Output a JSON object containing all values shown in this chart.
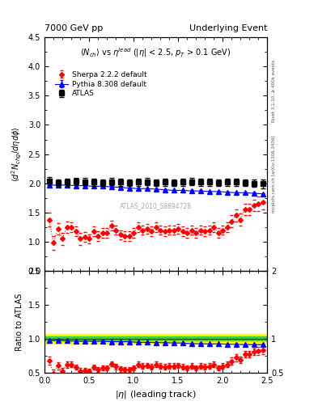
{
  "title_left": "7000 GeV pp",
  "title_right": "Underlying Event",
  "subtitle": "$\\langle N_{ch}\\rangle$ vs $\\eta^{lead}$ ($|\\eta|$ < 2.5, $p_{T}$ > 0.1 GeV)",
  "ylabel_main": "$\\langle d^2 N_{chg}/d\\eta d\\phi \\rangle$",
  "ylabel_ratio": "Ratio to ATLAS",
  "xlabel": "$|\\eta|$ (leading track)",
  "watermark": "ATLAS_2010_S8894728",
  "right_label_top": "Rivet 3.1.10, ≥ 400k events",
  "right_label_bottom": "mcplots.cern.ch [arXiv:1306.3436]",
  "ylim_main": [
    0.5,
    4.5
  ],
  "ylim_ratio": [
    0.5,
    2.0
  ],
  "xlim": [
    0.0,
    2.5
  ],
  "atlas_color": "#000000",
  "pythia_color": "#0000ff",
  "sherpa_color": "#ff0000",
  "band_yellow": "#ffff00",
  "band_green": "#44cc44",
  "atlas_data_x": [
    0.05,
    0.15,
    0.25,
    0.35,
    0.45,
    0.55,
    0.65,
    0.75,
    0.85,
    0.95,
    1.05,
    1.15,
    1.25,
    1.35,
    1.45,
    1.55,
    1.65,
    1.75,
    1.85,
    1.95,
    2.05,
    2.15,
    2.25,
    2.35,
    2.45
  ],
  "atlas_data_y": [
    2.04,
    2.01,
    2.02,
    2.04,
    2.03,
    2.02,
    2.01,
    2.03,
    2.02,
    2.01,
    2.02,
    2.03,
    2.01,
    2.02,
    2.01,
    2.02,
    2.03,
    2.02,
    2.02,
    2.01,
    2.02,
    2.02,
    2.01,
    2.0,
    1.99
  ],
  "atlas_data_yerr": [
    0.07,
    0.06,
    0.06,
    0.06,
    0.06,
    0.06,
    0.06,
    0.06,
    0.06,
    0.06,
    0.06,
    0.06,
    0.06,
    0.06,
    0.06,
    0.06,
    0.06,
    0.06,
    0.06,
    0.06,
    0.06,
    0.06,
    0.06,
    0.06,
    0.07
  ],
  "pythia_x": [
    0.05,
    0.15,
    0.25,
    0.35,
    0.45,
    0.55,
    0.65,
    0.75,
    0.85,
    0.95,
    1.05,
    1.15,
    1.25,
    1.35,
    1.45,
    1.55,
    1.65,
    1.75,
    1.85,
    1.95,
    2.05,
    2.15,
    2.25,
    2.35,
    2.45
  ],
  "pythia_y": [
    1.97,
    1.97,
    1.97,
    1.96,
    1.96,
    1.95,
    1.95,
    1.94,
    1.93,
    1.92,
    1.91,
    1.91,
    1.9,
    1.89,
    1.88,
    1.88,
    1.87,
    1.87,
    1.86,
    1.86,
    1.85,
    1.84,
    1.84,
    1.83,
    1.82
  ],
  "pythia_yerr": [
    0.01,
    0.01,
    0.01,
    0.01,
    0.01,
    0.01,
    0.01,
    0.01,
    0.01,
    0.01,
    0.01,
    0.01,
    0.01,
    0.01,
    0.01,
    0.01,
    0.01,
    0.01,
    0.01,
    0.01,
    0.01,
    0.01,
    0.01,
    0.01,
    0.01
  ],
  "sherpa_x": [
    0.05,
    0.1,
    0.15,
    0.2,
    0.25,
    0.3,
    0.35,
    0.4,
    0.45,
    0.5,
    0.55,
    0.6,
    0.65,
    0.7,
    0.75,
    0.8,
    0.85,
    0.9,
    0.95,
    1.0,
    1.05,
    1.1,
    1.15,
    1.2,
    1.25,
    1.3,
    1.35,
    1.4,
    1.45,
    1.5,
    1.55,
    1.6,
    1.65,
    1.7,
    1.75,
    1.8,
    1.85,
    1.9,
    1.95,
    2.0,
    2.05,
    2.1,
    2.15,
    2.2,
    2.25,
    2.3,
    2.35,
    2.4,
    2.45
  ],
  "sherpa_y": [
    1.38,
    0.98,
    1.22,
    1.05,
    1.25,
    1.25,
    1.18,
    1.05,
    1.08,
    1.05,
    1.18,
    1.1,
    1.15,
    1.15,
    1.28,
    1.2,
    1.12,
    1.1,
    1.1,
    1.15,
    1.25,
    1.2,
    1.22,
    1.18,
    1.25,
    1.2,
    1.18,
    1.2,
    1.2,
    1.22,
    1.18,
    1.15,
    1.2,
    1.15,
    1.2,
    1.18,
    1.2,
    1.25,
    1.15,
    1.2,
    1.25,
    1.35,
    1.45,
    1.38,
    1.55,
    1.55,
    1.62,
    1.65,
    1.68
  ],
  "sherpa_yerr": [
    0.12,
    0.12,
    0.1,
    0.1,
    0.1,
    0.08,
    0.08,
    0.1,
    0.08,
    0.08,
    0.08,
    0.08,
    0.08,
    0.08,
    0.08,
    0.08,
    0.08,
    0.08,
    0.08,
    0.08,
    0.08,
    0.08,
    0.08,
    0.08,
    0.08,
    0.08,
    0.08,
    0.08,
    0.08,
    0.08,
    0.08,
    0.08,
    0.08,
    0.08,
    0.08,
    0.08,
    0.08,
    0.08,
    0.08,
    0.08,
    0.08,
    0.1,
    0.1,
    0.1,
    0.1,
    0.1,
    0.1,
    0.12,
    0.12
  ],
  "ratio_pythia_y": [
    0.97,
    0.975,
    0.97,
    0.963,
    0.963,
    0.963,
    0.963,
    0.956,
    0.956,
    0.956,
    0.946,
    0.946,
    0.944,
    0.942,
    0.938,
    0.937,
    0.926,
    0.926,
    0.924,
    0.924,
    0.92,
    0.915,
    0.913,
    0.913,
    0.912
  ],
  "ratio_pythia_yerr": [
    0.008,
    0.008,
    0.008,
    0.008,
    0.008,
    0.008,
    0.008,
    0.008,
    0.008,
    0.008,
    0.008,
    0.008,
    0.008,
    0.008,
    0.008,
    0.008,
    0.008,
    0.008,
    0.008,
    0.008,
    0.008,
    0.008,
    0.008,
    0.008,
    0.008
  ],
  "ratio_sherpa_y": [
    0.68,
    0.49,
    0.6,
    0.52,
    0.62,
    0.62,
    0.58,
    0.52,
    0.53,
    0.52,
    0.58,
    0.545,
    0.57,
    0.57,
    0.63,
    0.59,
    0.555,
    0.545,
    0.545,
    0.57,
    0.62,
    0.595,
    0.605,
    0.585,
    0.62,
    0.595,
    0.585,
    0.595,
    0.595,
    0.605,
    0.585,
    0.57,
    0.595,
    0.57,
    0.595,
    0.585,
    0.595,
    0.62,
    0.57,
    0.595,
    0.62,
    0.67,
    0.72,
    0.685,
    0.77,
    0.77,
    0.805,
    0.82,
    0.835
  ],
  "ratio_sherpa_yerr": [
    0.06,
    0.06,
    0.05,
    0.05,
    0.05,
    0.04,
    0.04,
    0.05,
    0.04,
    0.04,
    0.04,
    0.04,
    0.04,
    0.04,
    0.04,
    0.04,
    0.04,
    0.04,
    0.04,
    0.04,
    0.04,
    0.04,
    0.04,
    0.04,
    0.04,
    0.04,
    0.04,
    0.04,
    0.04,
    0.04,
    0.04,
    0.04,
    0.04,
    0.04,
    0.04,
    0.04,
    0.04,
    0.04,
    0.04,
    0.04,
    0.04,
    0.05,
    0.05,
    0.05,
    0.05,
    0.05,
    0.05,
    0.06,
    0.06
  ],
  "band_yellow_y1": 0.93,
  "band_yellow_y2": 1.07,
  "band_green_y1": 0.97,
  "band_green_y2": 1.03
}
